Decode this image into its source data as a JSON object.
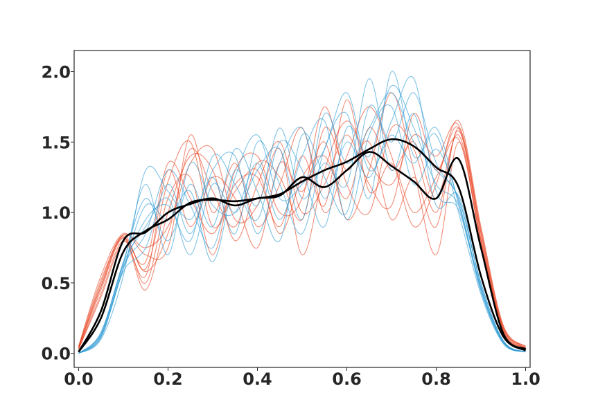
{
  "chart_data": {
    "type": "line",
    "title": "",
    "xlabel": "",
    "ylabel": "",
    "xlim": [
      -0.01,
      1.01
    ],
    "ylim": [
      -0.1,
      2.15
    ],
    "grid": false,
    "legend": "none",
    "x_ticks": [
      {
        "value": 0.0,
        "label": "0.0"
      },
      {
        "value": 0.2,
        "label": "0.2"
      },
      {
        "value": 0.4,
        "label": "0.4"
      },
      {
        "value": 0.6,
        "label": "0.6"
      },
      {
        "value": 0.8,
        "label": "0.8"
      },
      {
        "value": 1.0,
        "label": "1.0"
      }
    ],
    "y_ticks": [
      {
        "value": 0.0,
        "label": "0.0"
      },
      {
        "value": 0.5,
        "label": "0.5"
      },
      {
        "value": 1.0,
        "label": "1.0"
      },
      {
        "value": 1.5,
        "label": "1.5"
      },
      {
        "value": 2.0,
        "label": "2.0"
      }
    ],
    "x": [
      0.0,
      0.05,
      0.1,
      0.15,
      0.2,
      0.25,
      0.3,
      0.35,
      0.4,
      0.45,
      0.5,
      0.55,
      0.6,
      0.65,
      0.7,
      0.75,
      0.8,
      0.85,
      0.9,
      0.95,
      1.0
    ],
    "series": [
      {
        "color": "#000000",
        "group": "mean",
        "values": [
          0.01,
          0.25,
          0.72,
          0.87,
          0.95,
          1.07,
          1.09,
          1.08,
          1.1,
          1.13,
          1.22,
          1.3,
          1.36,
          1.45,
          1.52,
          1.47,
          1.32,
          1.18,
          0.55,
          0.12,
          0.02
        ]
      },
      {
        "color": "#000000",
        "group": "mean",
        "values": [
          0.01,
          0.3,
          0.8,
          0.86,
          1.0,
          1.06,
          1.1,
          1.05,
          1.1,
          1.12,
          1.25,
          1.18,
          1.3,
          1.43,
          1.33,
          1.22,
          1.1,
          1.38,
          0.75,
          0.14,
          0.03
        ]
      },
      {
        "color": "#e8401c",
        "group": "red",
        "values": [
          0.04,
          0.5,
          0.84,
          0.6,
          1.22,
          1.5,
          0.9,
          1.15,
          1.3,
          0.85,
          1.25,
          1.4,
          1.1,
          1.6,
          1.3,
          1.5,
          1.1,
          1.55,
          0.8,
          0.18,
          0.04
        ]
      },
      {
        "color": "#e8401c",
        "group": "red",
        "values": [
          0.03,
          0.45,
          0.82,
          0.45,
          1.0,
          1.4,
          1.3,
          0.8,
          1.2,
          1.5,
          1.0,
          1.2,
          1.55,
          1.2,
          1.05,
          1.7,
          1.3,
          1.6,
          0.85,
          0.16,
          0.04
        ]
      },
      {
        "color": "#e8401c",
        "group": "red",
        "values": [
          0.05,
          0.55,
          0.85,
          0.7,
          0.75,
          1.55,
          1.0,
          1.35,
          0.9,
          1.2,
          1.6,
          1.0,
          1.4,
          1.75,
          1.4,
          0.9,
          1.2,
          1.65,
          0.9,
          0.2,
          0.05
        ]
      },
      {
        "color": "#e8401c",
        "group": "red",
        "values": [
          0.03,
          0.42,
          0.8,
          0.55,
          1.3,
          0.9,
          1.25,
          1.1,
          0.75,
          1.35,
          1.15,
          1.5,
          0.95,
          1.3,
          1.85,
          1.3,
          0.7,
          1.5,
          0.78,
          0.15,
          0.03
        ]
      },
      {
        "color": "#e8401c",
        "group": "red",
        "values": [
          0.04,
          0.48,
          0.83,
          0.5,
          1.1,
          1.25,
          0.7,
          1.3,
          1.4,
          1.0,
          1.1,
          1.75,
          1.2,
          1.0,
          1.6,
          1.45,
          1.0,
          1.58,
          0.82,
          0.17,
          0.04
        ]
      },
      {
        "color": "#e8401c",
        "group": "red",
        "values": [
          0.05,
          0.52,
          0.84,
          0.75,
          0.9,
          1.35,
          1.45,
          0.95,
          1.05,
          1.45,
          0.7,
          1.3,
          1.65,
          1.35,
          1.2,
          1.55,
          1.4,
          1.62,
          0.88,
          0.19,
          0.05
        ]
      },
      {
        "color": "#e8401c",
        "group": "red",
        "values": [
          0.03,
          0.4,
          0.79,
          0.65,
          1.35,
          1.1,
          0.85,
          1.2,
          1.25,
          0.9,
          1.4,
          1.05,
          1.8,
          1.15,
          1.35,
          1.0,
          1.25,
          1.52,
          0.8,
          0.16,
          0.04
        ]
      },
      {
        "color": "#e8401c",
        "group": "red",
        "values": [
          0.04,
          0.47,
          0.82,
          0.58,
          0.85,
          1.45,
          1.15,
          0.9,
          1.35,
          1.25,
          0.95,
          1.6,
          1.3,
          1.5,
          0.95,
          1.25,
          0.9,
          1.6,
          0.86,
          0.18,
          0.05
        ]
      },
      {
        "color": "#2a9ad4",
        "group": "blue",
        "values": [
          0.0,
          0.12,
          0.6,
          0.95,
          1.05,
          0.8,
          1.4,
          1.2,
          0.95,
          1.5,
          1.3,
          0.9,
          1.6,
          1.4,
          1.9,
          1.6,
          1.2,
          1.05,
          0.45,
          0.08,
          0.01
        ]
      },
      {
        "color": "#2a9ad4",
        "group": "blue",
        "values": [
          0.0,
          0.15,
          0.65,
          1.1,
          0.8,
          1.2,
          0.9,
          1.45,
          1.15,
          0.8,
          1.55,
          1.25,
          1.0,
          1.75,
          1.5,
          1.85,
          1.35,
          1.1,
          0.5,
          0.09,
          0.01
        ]
      },
      {
        "color": "#2a9ad4",
        "group": "blue",
        "values": [
          0.0,
          0.1,
          0.55,
          1.3,
          1.15,
          0.95,
          1.25,
          0.85,
          1.5,
          1.2,
          0.85,
          1.45,
          1.7,
          1.1,
          2.0,
          1.4,
          1.55,
          1.0,
          0.42,
          0.07,
          0.01
        ]
      },
      {
        "color": "#2a9ad4",
        "group": "blue",
        "values": [
          0.0,
          0.13,
          0.62,
          0.85,
          1.3,
          1.05,
          0.75,
          1.3,
          1.05,
          1.6,
          1.1,
          1.35,
          1.2,
          1.95,
          1.3,
          1.7,
          1.05,
          1.12,
          0.48,
          0.08,
          0.01
        ]
      },
      {
        "color": "#2a9ad4",
        "group": "blue",
        "values": [
          0.0,
          0.14,
          0.63,
          1.2,
          0.7,
          1.35,
          1.05,
          1.0,
          1.35,
          0.95,
          1.4,
          1.65,
          0.95,
          1.55,
          1.75,
          1.2,
          1.45,
          1.08,
          0.46,
          0.08,
          0.01
        ]
      },
      {
        "color": "#2a9ad4",
        "group": "blue",
        "values": [
          0.0,
          0.11,
          0.58,
          0.75,
          1.2,
          0.85,
          1.3,
          1.4,
          0.85,
          1.35,
          1.6,
          1.1,
          1.5,
          1.25,
          1.65,
          1.95,
          1.15,
          1.02,
          0.44,
          0.07,
          0.01
        ]
      },
      {
        "color": "#2a9ad4",
        "group": "blue",
        "values": [
          0.0,
          0.12,
          0.6,
          1.05,
          0.95,
          1.15,
          0.65,
          1.25,
          1.55,
          1.1,
          1.2,
          1.45,
          1.85,
          1.3,
          1.55,
          1.35,
          1.6,
          1.06,
          0.47,
          0.08,
          0.01
        ]
      },
      {
        "color": "#2a9ad4",
        "group": "blue",
        "values": [
          0.0,
          0.14,
          0.64,
          0.9,
          1.1,
          0.7,
          1.2,
          1.0,
          1.3,
          1.45,
          0.95,
          1.7,
          1.35,
          1.6,
          1.85,
          1.5,
          1.3,
          1.1,
          0.5,
          0.09,
          0.01
        ]
      }
    ]
  }
}
